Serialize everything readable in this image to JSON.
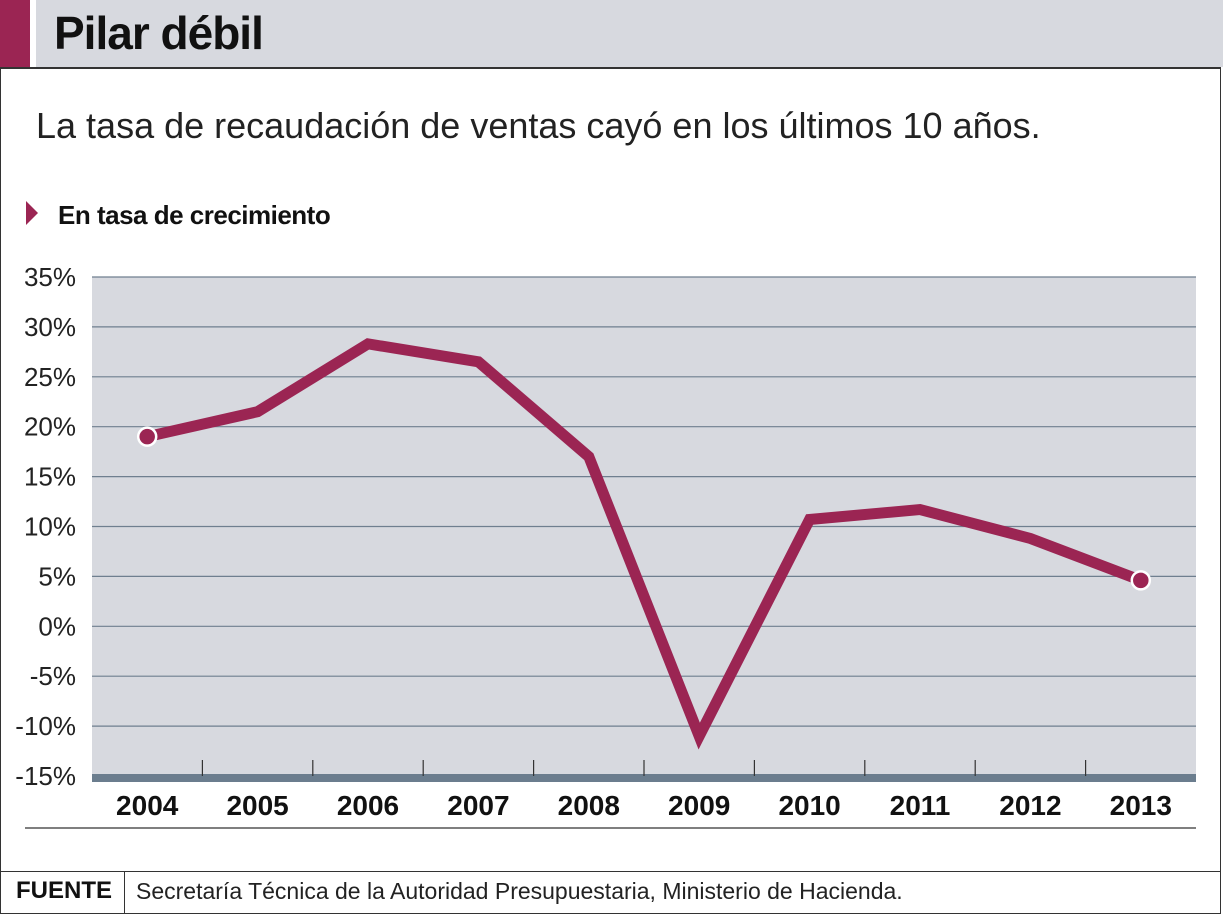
{
  "header": {
    "title": "Pilar débil",
    "accent_color": "#9b2553",
    "background_color": "#d7d9df"
  },
  "subtitle": "La tasa de recaudación de ventas cayó en los últimos 10 años.",
  "series_label": "En tasa de crecimiento",
  "chart_data": {
    "type": "line",
    "x": [
      "2004",
      "2005",
      "2006",
      "2007",
      "2008",
      "2009",
      "2010",
      "2011",
      "2012",
      "2013"
    ],
    "series": [
      {
        "values": [
          19,
          21.5,
          28.3,
          26.5,
          17,
          -11,
          10.7,
          11.7,
          8.8,
          4.6
        ],
        "color": "#9b2553"
      }
    ],
    "y_ticks": [
      "35%",
      "30%",
      "25%",
      "20%",
      "15%",
      "10%",
      "5%",
      "0%",
      "-5%",
      "-10%",
      "-15%"
    ],
    "ylim": [
      -15,
      35
    ],
    "grid": true,
    "plot_background": "#d7d9df",
    "endpoint_markers": true
  },
  "footer": {
    "source_label": "FUENTE",
    "source_text": "Secretaría Técnica de la Autoridad Presupuestaria, Ministerio de Hacienda."
  }
}
